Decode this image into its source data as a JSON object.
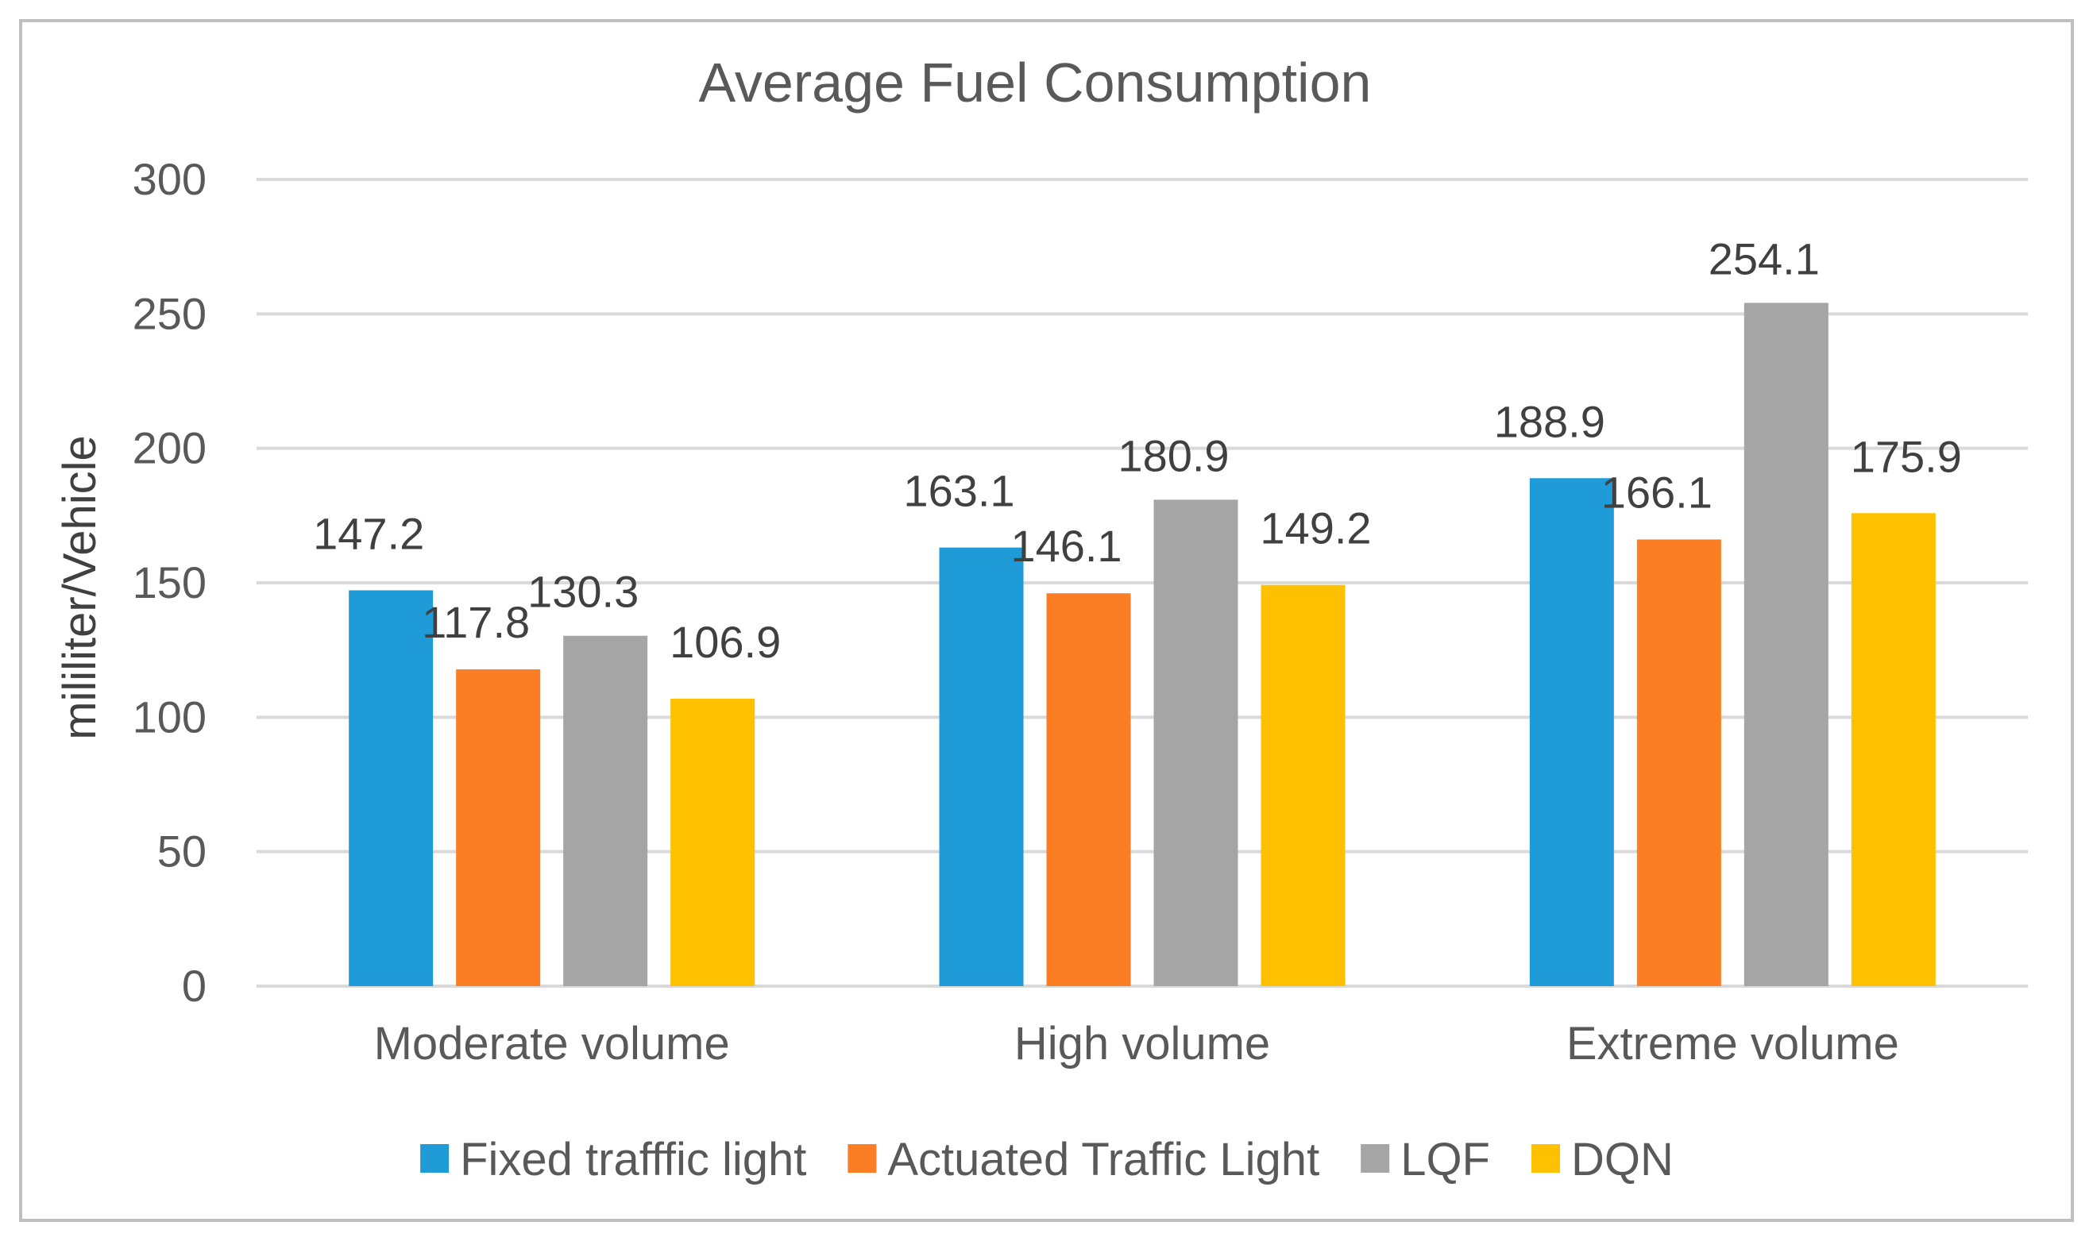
{
  "chart_data": {
    "type": "bar",
    "title": "Average Fuel Consumption",
    "xlabel": "",
    "ylabel": "mililiter/Vehicle",
    "ylim": [
      0,
      300
    ],
    "yticks": [
      0,
      50,
      100,
      150,
      200,
      250,
      300
    ],
    "grid": true,
    "legend_position": "bottom",
    "categories": [
      "Moderate volume",
      "High volume",
      "Extreme volume"
    ],
    "series": [
      {
        "name": "Fixed trafffic light",
        "color": "#1f9bd7",
        "values": [
          147.2,
          163.1,
          188.9
        ],
        "labels": [
          "147.2",
          "163.1",
          "188.9"
        ]
      },
      {
        "name": "Actuated Traffic Light",
        "color": "#fb7d24",
        "values": [
          117.8,
          146.1,
          166.1
        ],
        "labels": [
          "117.8",
          "146.1",
          "166.1"
        ]
      },
      {
        "name": "LQF",
        "color": "#a5a5a5",
        "values": [
          130.3,
          180.9,
          254.1
        ],
        "labels": [
          "130.3",
          "180.9",
          "254.1"
        ]
      },
      {
        "name": "DQN",
        "color": "#ffc000",
        "values": [
          106.9,
          149.2,
          175.9
        ],
        "labels": [
          "106.9",
          "149.2",
          "175.9"
        ]
      }
    ]
  }
}
